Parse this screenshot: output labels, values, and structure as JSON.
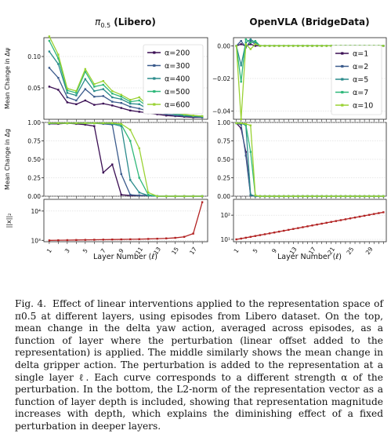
{
  "figure": {
    "left_title_prefix": "π",
    "left_title_sub": "0.5",
    "left_title_rest": " (Libero)",
    "right_title": "OpenVLA (BridgeData)",
    "xlabel": "Layer Number (ℓ)",
    "ylabel_top": "Mean Change in Δψ",
    "ylabel_mid": "Mean Change in Δg",
    "ylabel_bot": "||x||₂"
  },
  "caption": {
    "label": "Fig. 4.",
    "text": "Effect of linear interventions applied to the representation space of π0.5 at different layers, using episodes from Libero dataset. On the top, mean change in the delta yaw action, averaged across episodes, as a function of layer where the perturbation (linear offset added to the representation) is applied. The middle similarly shows the mean change in delta gripper action. The perturbation is added to the representation at a single layer ℓ. Each curve corresponds to a different strength α of the perturbation. In the bottom, the L2-norm of the representation vector as a function of layer depth is included, showing that representation magnitude increases with depth, which explains the diminishing effect of a fixed perturbation in deeper layers."
  },
  "chart_data": [
    {
      "panel": "left-top",
      "type": "line",
      "title": "π0.5 (Libero)",
      "ylabel": "Mean Change in Δψ",
      "x": [
        1,
        2,
        3,
        4,
        5,
        6,
        7,
        8,
        9,
        10,
        11,
        12,
        13,
        14,
        15,
        16,
        17,
        18
      ],
      "ylim": [
        0,
        0.13
      ],
      "yticks": [
        "0.05",
        "0.10"
      ],
      "series": [
        {
          "name": "α=200",
          "color": "#3b0f54",
          "values": [
            0.052,
            0.047,
            0.027,
            0.024,
            0.03,
            0.023,
            0.025,
            0.022,
            0.018,
            0.014,
            0.012,
            0.01,
            0.008,
            0.006,
            0.005,
            0.004,
            0.003,
            0.003
          ]
        },
        {
          "name": "α=300",
          "color": "#3b5b8c",
          "values": [
            0.082,
            0.066,
            0.035,
            0.03,
            0.048,
            0.036,
            0.037,
            0.028,
            0.026,
            0.02,
            0.017,
            0.013,
            0.01,
            0.008,
            0.006,
            0.005,
            0.004,
            0.003
          ]
        },
        {
          "name": "α=400",
          "color": "#2b8b8c",
          "values": [
            0.108,
            0.088,
            0.042,
            0.038,
            0.064,
            0.045,
            0.048,
            0.035,
            0.032,
            0.025,
            0.024,
            0.016,
            0.013,
            0.01,
            0.008,
            0.006,
            0.005,
            0.004
          ]
        },
        {
          "name": "α=500",
          "color": "#2fb87a",
          "values": [
            0.125,
            0.097,
            0.046,
            0.042,
            0.076,
            0.052,
            0.055,
            0.041,
            0.036,
            0.028,
            0.03,
            0.019,
            0.015,
            0.012,
            0.009,
            0.007,
            0.006,
            0.005
          ]
        },
        {
          "name": "α=600",
          "color": "#9ad233",
          "values": [
            0.132,
            0.103,
            0.049,
            0.045,
            0.08,
            0.056,
            0.061,
            0.045,
            0.039,
            0.031,
            0.035,
            0.021,
            0.017,
            0.013,
            0.01,
            0.008,
            0.006,
            0.005
          ]
        }
      ]
    },
    {
      "panel": "left-mid",
      "type": "line",
      "ylabel": "Mean Change in Δg",
      "x": [
        1,
        2,
        3,
        4,
        5,
        6,
        7,
        8,
        9,
        10,
        11,
        12,
        13,
        14,
        15,
        16,
        17,
        18
      ],
      "ylim": [
        0,
        1.0
      ],
      "yticks": [
        "0.00",
        "0.25",
        "0.50",
        "0.75",
        "1.00"
      ],
      "series": [
        {
          "name": "α=200",
          "values": [
            0.98,
            0.98,
            0.99,
            0.98,
            0.97,
            0.95,
            0.32,
            0.43,
            0.02,
            0.01,
            0.01,
            0.01,
            0.0,
            0.0,
            0.0,
            0.0,
            0.0,
            0.0
          ]
        },
        {
          "name": "α=300",
          "values": [
            0.98,
            0.99,
            0.99,
            0.99,
            0.99,
            0.99,
            0.98,
            0.97,
            0.3,
            0.02,
            0.01,
            0.01,
            0.0,
            0.0,
            0.0,
            0.0,
            0.0,
            0.0
          ]
        },
        {
          "name": "α=400",
          "values": [
            0.99,
            0.99,
            0.99,
            0.99,
            0.99,
            0.99,
            0.99,
            0.98,
            0.95,
            0.22,
            0.05,
            0.01,
            0.0,
            0.0,
            0.0,
            0.0,
            0.0,
            0.0
          ]
        },
        {
          "name": "α=500",
          "values": [
            0.99,
            0.99,
            0.99,
            0.99,
            0.99,
            0.99,
            0.99,
            0.99,
            0.97,
            0.75,
            0.25,
            0.02,
            0.0,
            0.0,
            0.0,
            0.0,
            0.0,
            0.0
          ]
        },
        {
          "name": "α=600",
          "values": [
            0.99,
            0.99,
            0.99,
            0.99,
            0.99,
            0.99,
            0.99,
            0.99,
            0.98,
            0.9,
            0.65,
            0.05,
            0.0,
            0.0,
            0.0,
            0.0,
            0.0,
            0.0
          ]
        }
      ]
    },
    {
      "panel": "left-bot",
      "type": "line",
      "ylabel": "||x||₂",
      "xlabel": "Layer Number (ℓ)",
      "yscale": "log",
      "x": [
        1,
        2,
        3,
        4,
        5,
        6,
        7,
        8,
        9,
        10,
        11,
        12,
        13,
        14,
        15,
        16,
        17,
        18
      ],
      "xticks": [
        "1",
        "3",
        "5",
        "7",
        "9",
        "11",
        "13",
        "15",
        "17"
      ],
      "ylim": [
        900,
        25000
      ],
      "yticks": [
        "10³",
        "10⁴"
      ],
      "series": [
        {
          "color": "#b22222",
          "values": [
            1000,
            1010,
            1020,
            1030,
            1040,
            1050,
            1060,
            1070,
            1080,
            1090,
            1100,
            1120,
            1140,
            1170,
            1220,
            1320,
            1700,
            20000
          ]
        }
      ]
    },
    {
      "panel": "right-top",
      "type": "line",
      "title": "OpenVLA (BridgeData)",
      "x": [
        1,
        2,
        3,
        4,
        5,
        6,
        7,
        8,
        9,
        10,
        11,
        12,
        13,
        14,
        15,
        16,
        17,
        18,
        19,
        20,
        21,
        22,
        23,
        24,
        25,
        26,
        27,
        28,
        29,
        30,
        31,
        32
      ],
      "ylim": [
        -0.045,
        0.005
      ],
      "yticks": [
        "0.00",
        "−0.02",
        "−0.04"
      ],
      "series": [
        {
          "name": "α=1",
          "color": "#3b0f54",
          "values": [
            0.0,
            0.001,
            0.0,
            0.001,
            0.0,
            0.0,
            0.0,
            0.0,
            0.0,
            0.0,
            0.0,
            0.0,
            0.0,
            0.0,
            0.0,
            0.0,
            0.0,
            0.0,
            0.0,
            0.0,
            0.0,
            0.0,
            0.0,
            0.0,
            0.0,
            0.0,
            0.0,
            0.0,
            0.0,
            0.0,
            0.0,
            0.0
          ]
        },
        {
          "name": "α=2",
          "color": "#3b5b8c",
          "values": [
            0.0,
            0.003,
            -0.001,
            0.003,
            0.001,
            0.0,
            0.0,
            0.0,
            0.0,
            0.0,
            0.0,
            0.0,
            0.0,
            0.0,
            0.0,
            0.0,
            0.0,
            0.0,
            0.0,
            0.0,
            0.0,
            0.0,
            0.0,
            0.0,
            0.0,
            0.0,
            0.0,
            0.0,
            0.0,
            0.0,
            0.0,
            0.0
          ]
        },
        {
          "name": "α=5",
          "color": "#2b8b8c",
          "values": [
            0.0,
            -0.012,
            0.002,
            0.004,
            0.002,
            0.0,
            0.0,
            0.0,
            0.0,
            0.0,
            0.0,
            0.0,
            0.0,
            0.0,
            0.0,
            0.0,
            0.0,
            0.0,
            0.0,
            0.0,
            0.0,
            0.0,
            0.0,
            0.0,
            0.0,
            0.0,
            0.0,
            0.0,
            0.0,
            0.0,
            0.0,
            0.0
          ]
        },
        {
          "name": "α=7",
          "color": "#2fb87a",
          "values": [
            0.0,
            -0.022,
            0.004,
            0.002,
            0.003,
            0.0,
            0.0,
            0.0,
            0.0,
            0.0,
            0.0,
            0.0,
            0.0,
            0.0,
            0.0,
            0.0,
            0.0,
            0.0,
            0.0,
            0.0,
            0.0,
            0.0,
            0.0,
            0.0,
            0.0,
            0.0,
            0.0,
            0.0,
            0.0,
            0.0,
            0.0,
            0.0
          ]
        },
        {
          "name": "α=10",
          "color": "#9ad233",
          "values": [
            0.0,
            -0.045,
            0.001,
            -0.002,
            0.001,
            0.0,
            0.0,
            0.0,
            0.0,
            0.0,
            0.0,
            0.0,
            0.0,
            0.0,
            0.0,
            0.0,
            0.0,
            0.0,
            0.0,
            0.0,
            0.0,
            0.0,
            0.0,
            0.0,
            0.0,
            0.0,
            0.0,
            0.0,
            0.0,
            0.0,
            0.0,
            0.0
          ]
        }
      ]
    },
    {
      "panel": "right-mid",
      "type": "line",
      "x": [
        1,
        2,
        3,
        4,
        5,
        6,
        7,
        8,
        9,
        10,
        11,
        12,
        13,
        14,
        15,
        16,
        17,
        18,
        19,
        20,
        21,
        22,
        23,
        24,
        25,
        26,
        27,
        28,
        29,
        30,
        31,
        32
      ],
      "ylim": [
        0,
        1.0
      ],
      "yticks": [
        "0.00",
        "0.25",
        "0.50",
        "0.75",
        "1.00"
      ],
      "series": [
        {
          "name": "α=1",
          "values": [
            0.99,
            0.92,
            0.6,
            0.02,
            0.0,
            0.0,
            0.0,
            0.0,
            0.0,
            0.0,
            0.0,
            0.0,
            0.0,
            0.0,
            0.0,
            0.0,
            0.0,
            0.0,
            0.0,
            0.0,
            0.0,
            0.0,
            0.0,
            0.0,
            0.0,
            0.0,
            0.0,
            0.0,
            0.0,
            0.0,
            0.0,
            0.0
          ]
        },
        {
          "name": "α=2",
          "values": [
            0.99,
            0.97,
            0.55,
            0.01,
            0.0,
            0.0,
            0.0,
            0.0,
            0.0,
            0.0,
            0.0,
            0.0,
            0.0,
            0.0,
            0.0,
            0.0,
            0.0,
            0.0,
            0.0,
            0.0,
            0.0,
            0.0,
            0.0,
            0.0,
            0.0,
            0.0,
            0.0,
            0.0,
            0.0,
            0.0,
            0.0,
            0.0
          ]
        },
        {
          "name": "α=5",
          "values": [
            0.99,
            0.99,
            0.96,
            0.02,
            0.0,
            0.0,
            0.0,
            0.0,
            0.0,
            0.0,
            0.0,
            0.0,
            0.0,
            0.0,
            0.0,
            0.0,
            0.0,
            0.0,
            0.0,
            0.0,
            0.0,
            0.0,
            0.0,
            0.0,
            0.0,
            0.0,
            0.0,
            0.0,
            0.0,
            0.0,
            0.0,
            0.0
          ]
        },
        {
          "name": "α=7",
          "values": [
            0.99,
            0.99,
            0.97,
            0.6,
            0.01,
            0.0,
            0.0,
            0.0,
            0.0,
            0.0,
            0.0,
            0.0,
            0.0,
            0.0,
            0.0,
            0.0,
            0.0,
            0.0,
            0.0,
            0.0,
            0.0,
            0.0,
            0.0,
            0.0,
            0.0,
            0.0,
            0.0,
            0.0,
            0.0,
            0.0,
            0.0,
            0.0
          ]
        },
        {
          "name": "α=10",
          "values": [
            0.99,
            0.99,
            0.98,
            0.96,
            0.01,
            0.0,
            0.0,
            0.0,
            0.0,
            0.0,
            0.0,
            0.0,
            0.0,
            0.0,
            0.0,
            0.0,
            0.0,
            0.0,
            0.0,
            0.0,
            0.0,
            0.0,
            0.0,
            0.0,
            0.0,
            0.0,
            0.0,
            0.0,
            0.0,
            0.0,
            0.0,
            0.0
          ]
        }
      ]
    },
    {
      "panel": "right-bot",
      "type": "line",
      "xlabel": "Layer Number (ℓ)",
      "yscale": "log",
      "x": [
        1,
        2,
        3,
        4,
        5,
        6,
        7,
        8,
        9,
        10,
        11,
        12,
        13,
        14,
        15,
        16,
        17,
        18,
        19,
        20,
        21,
        22,
        23,
        24,
        25,
        26,
        27,
        28,
        29,
        30,
        31,
        32
      ],
      "xticks": [
        "1",
        "5",
        "9",
        "13",
        "17",
        "21",
        "25",
        "29"
      ],
      "ylim": [
        8,
        450
      ],
      "yticks": [
        "10¹",
        "10²"
      ],
      "series": [
        {
          "color": "#b22222",
          "values": [
            10,
            10.8,
            11.7,
            12.7,
            13.8,
            15,
            16.3,
            17.7,
            19.2,
            20.9,
            22.7,
            24.7,
            26.9,
            29.2,
            31.8,
            34.6,
            37.6,
            40.9,
            44.5,
            48.4,
            52.6,
            57.2,
            62.2,
            67.6,
            73.5,
            79.9,
            86.9,
            94.5,
            102.7,
            111.7,
            121.4,
            132
          ]
        }
      ]
    }
  ]
}
